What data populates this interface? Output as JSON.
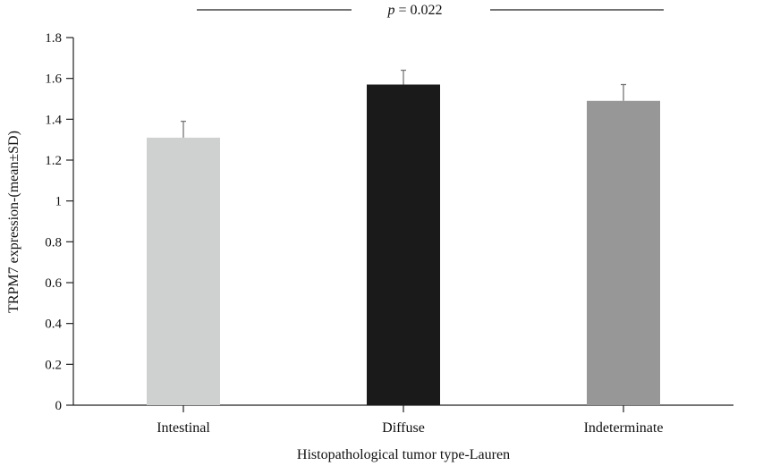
{
  "chart_data": {
    "type": "bar",
    "categories": [
      "Intestinal",
      "Diffuse",
      "Indeterminate"
    ],
    "values": [
      1.31,
      1.57,
      1.49
    ],
    "errors": [
      0.08,
      0.07,
      0.08
    ],
    "colors": [
      "#cfd1d0",
      "#1a1a1a",
      "#979797"
    ],
    "title": "",
    "xlabel": "Histopathological tumor type-Lauren",
    "ylabel": "TRPM7 expression-(mean±SD)",
    "ylim": [
      0,
      1.8
    ],
    "yticks": [
      0,
      0.2,
      0.4,
      0.6,
      0.8,
      1,
      1.2,
      1.4,
      1.6,
      1.8
    ],
    "ytick_labels": [
      "0",
      "0.2",
      "0.4",
      "0.6",
      "0.8",
      "1",
      "1.2",
      "1.4",
      "1.6",
      "1.8"
    ],
    "grid": false,
    "annotation": {
      "prefix": "p",
      "text": " = 0.022"
    }
  }
}
